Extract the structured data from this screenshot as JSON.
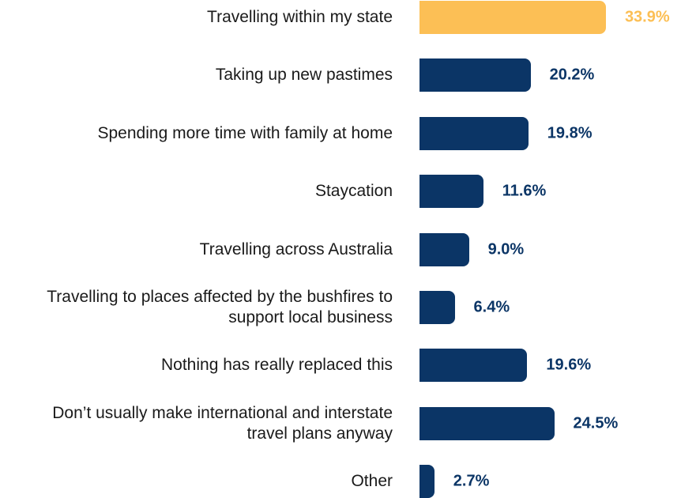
{
  "chart_data": {
    "type": "bar",
    "orientation": "horizontal",
    "categories": [
      "Travelling within my state",
      "Taking up new pastimes",
      "Spending more time with family at home",
      "Staycation",
      "Travelling across Australia",
      "Travelling to places affected by the bushfires to support local business",
      "Nothing has really replaced this",
      "Don’t usually make international and interstate travel plans anyway",
      "Other"
    ],
    "values": [
      33.9,
      20.2,
      19.8,
      11.6,
      9.0,
      6.4,
      19.6,
      24.5,
      2.7
    ],
    "value_labels": [
      "33.9%",
      "20.2%",
      "19.8%",
      "11.6%",
      "9.0%",
      "6.4%",
      "19.6%",
      "24.5%",
      "2.7%"
    ],
    "colors": [
      "#fcbf55",
      "#0b3566",
      "#0b3566",
      "#0b3566",
      "#0b3566",
      "#0b3566",
      "#0b3566",
      "#0b3566",
      "#0b3566"
    ]
  }
}
